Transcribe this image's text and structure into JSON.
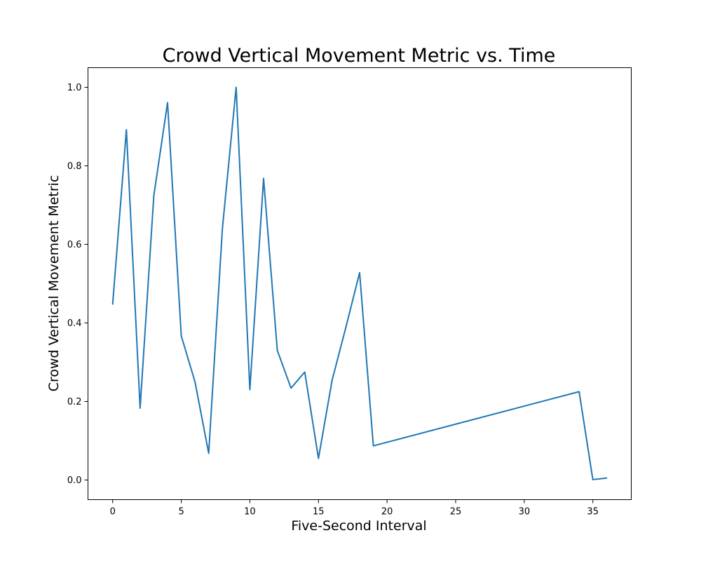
{
  "chart_data": {
    "type": "line",
    "title": "Crowd Vertical Movement Metric vs. Time",
    "xlabel": "Five-Second Interval",
    "ylabel": "Crowd Vertical Movement Metric",
    "xlim": [
      -1.8,
      37.8
    ],
    "ylim": [
      -0.05,
      1.05
    ],
    "xticks": [
      0,
      5,
      10,
      15,
      20,
      25,
      30,
      35
    ],
    "yticks": [
      0.0,
      0.2,
      0.4,
      0.6,
      0.8,
      1.0
    ],
    "xtick_labels": [
      "0",
      "5",
      "10",
      "15",
      "20",
      "25",
      "30",
      "35"
    ],
    "ytick_labels": [
      "0.0",
      "0.2",
      "0.4",
      "0.6",
      "0.8",
      "1.0"
    ],
    "grid": false,
    "series": [
      {
        "color": "#1f77b4",
        "x": [
          0,
          1,
          2,
          3,
          4,
          5,
          6,
          7,
          8,
          9,
          10,
          11,
          12,
          13,
          14,
          15,
          16,
          17,
          18,
          19,
          34,
          35,
          36
        ],
        "y": [
          0.448,
          0.892,
          0.183,
          0.724,
          0.961,
          0.367,
          0.25,
          0.068,
          0.641,
          1.0,
          0.23,
          0.768,
          0.33,
          0.234,
          0.275,
          0.055,
          0.255,
          0.389,
          0.528,
          0.087,
          0.225,
          0.001,
          0.005
        ]
      }
    ]
  }
}
